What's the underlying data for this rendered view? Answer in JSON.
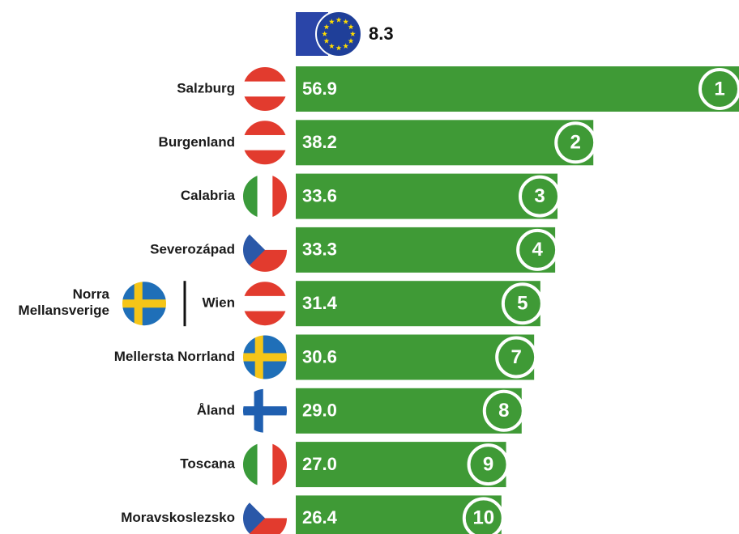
{
  "chart_data": {
    "type": "bar",
    "orientation": "horizontal",
    "categories": [
      "Salzburg",
      "Burgenland",
      "Calabria",
      "Severozápad",
      "Wien",
      "Mellersta Norrland",
      "Åland",
      "Toscana",
      "Moravskoslezsko"
    ],
    "tied_categories": [
      null,
      null,
      null,
      null,
      "Norra Mellansverige",
      null,
      null,
      null,
      null
    ],
    "values": [
      56.9,
      38.2,
      33.6,
      33.3,
      31.4,
      30.6,
      29.0,
      27.0,
      26.4
    ],
    "value_labels": [
      "56.9",
      "38.2",
      "33.6",
      "33.3",
      "31.4",
      "30.6",
      "29.0",
      "27.0",
      "26.4"
    ],
    "ranks": [
      1,
      2,
      3,
      4,
      5,
      7,
      8,
      9,
      10
    ],
    "flags": [
      "AT",
      "AT",
      "IT",
      "CZ",
      "AT",
      "SE",
      "FI",
      "IT",
      "CZ"
    ],
    "tied_flags": [
      null,
      null,
      null,
      null,
      "SE",
      null,
      null,
      null,
      null
    ],
    "reference": {
      "value": 8.3,
      "flag": "EU"
    },
    "color": "#3f9a36"
  }
}
